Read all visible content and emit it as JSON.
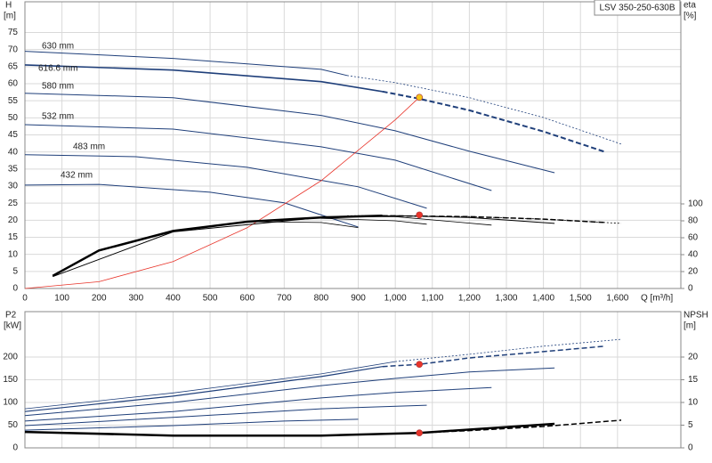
{
  "chart_data": [
    {
      "type": "line",
      "model": "LSV 350-250-630B",
      "y_label": "H",
      "y_unit": "[m]",
      "y2_label": "eta",
      "y2_unit": "[%]",
      "x_label": "Q [m³/h]",
      "xlim": [
        0,
        1771
      ],
      "ylim": [
        0,
        84
      ],
      "y2lim": [
        0,
        339
      ],
      "grid": true,
      "xtick_labels": true,
      "xticks": [
        0,
        100,
        200,
        300,
        400,
        500,
        600,
        700,
        800,
        900,
        {
          "value": 1000,
          "label": "1,000"
        },
        {
          "value": 1100,
          "label": "1,100"
        },
        {
          "value": 1200,
          "label": "1,200"
        },
        {
          "value": 1300,
          "label": "1,300"
        },
        {
          "value": 1400,
          "label": "1,400"
        },
        {
          "value": 1500,
          "label": "1,500"
        },
        {
          "value": 1600,
          "label": "1,600"
        }
      ],
      "yticks": [
        0,
        5,
        10,
        15,
        20,
        25,
        30,
        35,
        40,
        45,
        50,
        55,
        60,
        65,
        70,
        75
      ],
      "y2ticks": [
        0,
        20,
        40,
        60,
        80,
        100
      ],
      "series": [
        {
          "name": "630 mm",
          "x": [
            0,
            400,
            800,
            870
          ],
          "values": [
            69.5,
            67.4,
            64.2,
            62.4
          ],
          "color": "#1f3f7a",
          "width": 1,
          "dash": false
        },
        {
          "x": [
            870,
            1000,
            1200,
            1400,
            1610
          ],
          "values": [
            62.4,
            60.3,
            55.9,
            50.1,
            42.3
          ],
          "color": "#1f3f7a",
          "width": 0.8,
          "dash": true
        },
        {
          "name": "616.6 mm",
          "x": [
            0,
            400,
            800,
            965
          ],
          "values": [
            65.5,
            64,
            60.6,
            57.7
          ],
          "color": "#1f3f7a",
          "width": 1.6,
          "dash": false
        },
        {
          "x": [
            965,
            1065,
            1200,
            1400,
            1567
          ],
          "values": [
            57.7,
            55.6,
            52.2,
            46,
            40
          ],
          "color": "#1f3f7a",
          "width": 2,
          "dash": true
        },
        {
          "name": "580 mm",
          "x": [
            0,
            400,
            800,
            1000,
            1200,
            1430
          ],
          "values": [
            57.2,
            55.9,
            50.7,
            46.2,
            40.2,
            33.9
          ],
          "color": "#1f3f7a",
          "width": 1,
          "dash": false
        },
        {
          "name": "532 mm",
          "x": [
            0,
            400,
            800,
            1000,
            1260
          ],
          "values": [
            48,
            46.7,
            41.5,
            37.6,
            28.7
          ],
          "color": "#1f3f7a",
          "width": 1,
          "dash": false
        },
        {
          "name": "483 mm",
          "x": [
            0,
            300,
            600,
            900,
            1085
          ],
          "values": [
            39.2,
            38.6,
            35.5,
            29.8,
            23.5
          ],
          "color": "#1f3f7a",
          "width": 1,
          "dash": false
        },
        {
          "name": "432 mm",
          "x": [
            0,
            200,
            500,
            700,
            900
          ],
          "values": [
            30.3,
            30.5,
            28.2,
            25.1,
            18
          ],
          "color": "#1f3f7a",
          "width": 1,
          "dash": false
        },
        {
          "x": [
            0,
            200,
            400,
            600,
            800,
            1000,
            1065
          ],
          "values": [
            0,
            1.98,
            7.9,
            17.8,
            31.6,
            49.4,
            56
          ],
          "color": "#e8342a",
          "width": 0.8,
          "dash": false
        },
        {
          "x": [
            75,
            200,
            400,
            600,
            800,
            965
          ],
          "values": [
            15,
            45,
            68,
            79,
            84,
            86
          ],
          "color": "#000000",
          "width": 2.5,
          "dash": false,
          "axis": "y2"
        },
        {
          "x": [
            965,
            1200,
            1400,
            1567
          ],
          "values": [
            86,
            85,
            82,
            78
          ],
          "color": "#000000",
          "width": 1.5,
          "dash": true,
          "axis": "y2"
        },
        {
          "x": [
            870,
            1000,
            1200,
            1400,
            1610
          ],
          "values": [
            86,
            86,
            85,
            82,
            77
          ],
          "color": "#000000",
          "width": 0.8,
          "dash": true,
          "axis": "y2"
        },
        {
          "x": [
            75,
            400,
            800,
            1000,
            1200,
            1430
          ],
          "values": [
            14,
            67,
            84,
            86,
            84,
            77
          ],
          "color": "#000000",
          "width": 1,
          "dash": false,
          "axis": "y2"
        },
        {
          "x": [
            800,
            1000,
            1260
          ],
          "values": [
            85,
            85,
            75
          ],
          "color": "#000000",
          "width": 0.8,
          "dash": false,
          "axis": "y2"
        },
        {
          "x": [
            800,
            1000,
            1085
          ],
          "values": [
            83,
            80,
            76
          ],
          "color": "#000000",
          "width": 0.8,
          "dash": false,
          "axis": "y2"
        },
        {
          "x": [
            600,
            800,
            900
          ],
          "values": [
            79,
            78,
            72
          ],
          "color": "#000000",
          "width": 0.8,
          "dash": false,
          "axis": "y2"
        }
      ],
      "points": [
        {
          "x": 1065,
          "y": 56,
          "color": "#f5c518"
        },
        {
          "x": 1065,
          "y": 87,
          "color": "#e8342a",
          "axis": "y2"
        }
      ]
    },
    {
      "type": "line",
      "y_label": "P2",
      "y_unit": "[kW]",
      "y2_label": "NPSH",
      "y2_unit": "[m]",
      "xlim": [
        0,
        1771
      ],
      "ylim": [
        0,
        300
      ],
      "y2lim": [
        0,
        30
      ],
      "grid": true,
      "xtick_labels": false,
      "xticks": [
        0,
        100,
        200,
        300,
        400,
        500,
        600,
        700,
        800,
        900,
        1000,
        1100,
        1200,
        1300,
        1400,
        1500,
        1600
      ],
      "yticks": [
        0,
        50,
        100,
        150,
        200
      ],
      "y2ticks": [
        0,
        5,
        10,
        15,
        20
      ],
      "series": [
        {
          "x": [
            0,
            400,
            800,
            1000
          ],
          "values": [
            86,
            121,
            163,
            190
          ],
          "color": "#1f3f7a",
          "width": 0.8,
          "dash": false
        },
        {
          "x": [
            1000,
            1200,
            1400,
            1610
          ],
          "values": [
            190,
            206,
            224,
            239
          ],
          "color": "#1f3f7a",
          "width": 0.8,
          "dash": true
        },
        {
          "x": [
            0,
            400,
            800,
            965
          ],
          "values": [
            80,
            114,
            157,
            179
          ],
          "color": "#1f3f7a",
          "width": 1.2,
          "dash": false
        },
        {
          "x": [
            965,
            1065,
            1200,
            1400,
            1567
          ],
          "values": [
            179,
            184,
            198,
            212,
            224
          ],
          "color": "#1f3f7a",
          "width": 1.5,
          "dash": true
        },
        {
          "x": [
            0,
            400,
            800,
            1000,
            1200,
            1430
          ],
          "values": [
            71,
            100,
            137,
            153,
            167,
            176
          ],
          "color": "#1f3f7a",
          "width": 1,
          "dash": false
        },
        {
          "x": [
            0,
            400,
            800,
            1000,
            1260
          ],
          "values": [
            59,
            80,
            110,
            122,
            133
          ],
          "color": "#1f3f7a",
          "width": 1,
          "dash": false
        },
        {
          "x": [
            0,
            400,
            800,
            1085
          ],
          "values": [
            49,
            67,
            86,
            94
          ],
          "color": "#1f3f7a",
          "width": 1,
          "dash": false
        },
        {
          "x": [
            0,
            400,
            700,
            900
          ],
          "values": [
            39,
            49,
            59,
            63
          ],
          "color": "#1f3f7a",
          "width": 1,
          "dash": false
        },
        {
          "x": [
            0,
            400,
            800,
            1065,
            1430
          ],
          "values": [
            3.5,
            2.7,
            2.7,
            3.3,
            5.3
          ],
          "color": "#000000",
          "width": 2.5,
          "dash": false,
          "axis": "y2"
        },
        {
          "x": [
            1065,
            1200,
            1400,
            1610
          ],
          "values": [
            3.3,
            3.8,
            4.7,
            6.1
          ],
          "color": "#000000",
          "width": 1.5,
          "dash": true,
          "axis": "y2"
        }
      ],
      "points": [
        {
          "x": 1065,
          "y": 184,
          "color": "#e8342a"
        },
        {
          "x": 1065,
          "y": 3.3,
          "color": "#e8342a",
          "axis": "y2"
        }
      ]
    }
  ]
}
